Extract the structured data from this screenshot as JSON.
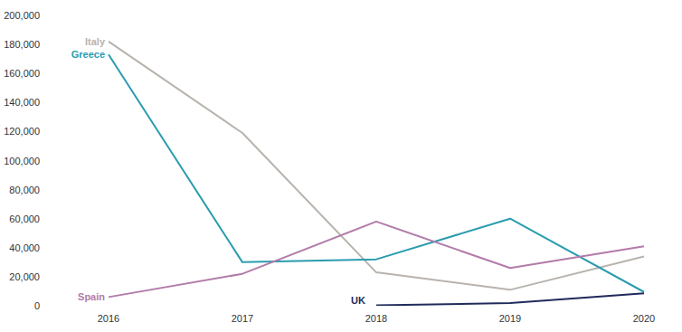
{
  "chart_data": {
    "type": "line",
    "categories": [
      "2016",
      "2017",
      "2018",
      "2019",
      "2020"
    ],
    "series": [
      {
        "name": "Italy",
        "color": "#b9b3ad",
        "values": [
          182000,
          119000,
          23000,
          11000,
          34000
        ]
      },
      {
        "name": "Greece",
        "color": "#2a9cae",
        "values": [
          173000,
          30000,
          32000,
          60000,
          9500
        ]
      },
      {
        "name": "Spain",
        "color": "#b27ba9",
        "values": [
          6000,
          22000,
          58000,
          26000,
          41000
        ]
      },
      {
        "name": "UK",
        "color": "#1f2b5c",
        "values": [
          null,
          null,
          300,
          1800,
          8500
        ]
      }
    ],
    "ylim": [
      0,
      200000
    ],
    "yticks": [
      0,
      {
        "value": 20000,
        "label": "20,000"
      },
      {
        "value": 40000,
        "label": "40,000"
      },
      {
        "value": 60000,
        "label": "60,000"
      },
      {
        "value": 80000,
        "label": "80,000"
      },
      {
        "value": 100000,
        "label": "100,000"
      },
      {
        "value": 120000,
        "label": "120,000"
      },
      {
        "value": 140000,
        "label": "140,000"
      },
      {
        "value": 160000,
        "label": "160,000"
      },
      {
        "value": 180000,
        "label": "180,000"
      },
      {
        "value": 200000,
        "label": "200,000"
      }
    ],
    "grid": false
  }
}
